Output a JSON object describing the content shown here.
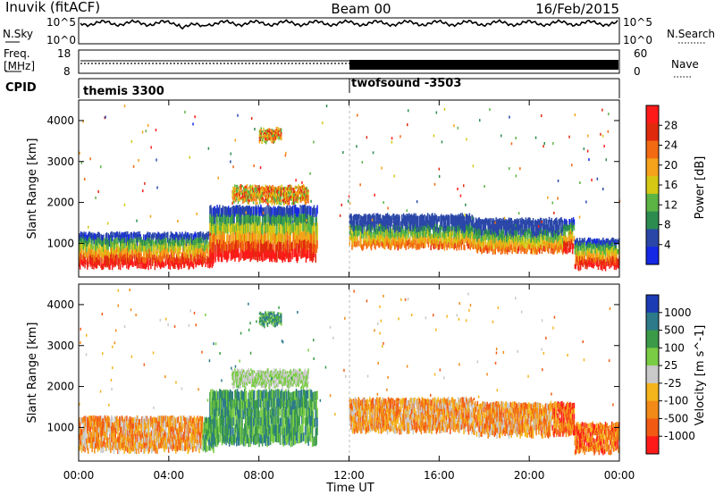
{
  "header": {
    "station": "Inuvik (fitACF)",
    "beam": "Beam 00",
    "date": "16/Feb/2015"
  },
  "status_panels": {
    "nsky_label": "N.Sky",
    "nsearch_label": "N.Search",
    "noise_ticks_left": [
      "10^5",
      "10^0"
    ],
    "noise_ticks_right": [
      "10^5",
      "10^0"
    ],
    "freq_label_line1": "Freq.",
    "freq_label_line2": "[MHz]",
    "freq_ticks": [
      "18",
      "8"
    ],
    "nave_label": "Nave",
    "nave_ticks": [
      "60",
      "0"
    ],
    "cpid_label": "CPID",
    "cpid_segments": [
      {
        "name": "themis 3300",
        "start_hour": 0
      },
      {
        "name": "twofsound -3503",
        "start_hour": 12
      }
    ]
  },
  "colors": {
    "power_scale": [
      "#1428e6",
      "#2a47a8",
      "#2c8c50",
      "#5bb444",
      "#d4c814",
      "#f4a21a",
      "#f26a12",
      "#e02a0e",
      "#ff1a1a"
    ],
    "velocity_scale": [
      "#ff1a1a",
      "#f25a14",
      "#f28a18",
      "#f4b41c",
      "#c9c9c9",
      "#7acc44",
      "#3a9a48",
      "#2c7a8a",
      "#1c3cb4"
    ]
  },
  "chart_data": [
    {
      "type": "heatmap",
      "name": "power_panel",
      "ylabel": "Slant Range [km]",
      "xlabel": "Time UT",
      "x_ticks": [
        "00:00",
        "04:00",
        "08:00",
        "12:00",
        "16:00",
        "20:00",
        "00:00"
      ],
      "xlim_hours": [
        0,
        24
      ],
      "ylim": [
        180,
        4500
      ],
      "y_ticks": [
        1000,
        2000,
        3000,
        4000
      ],
      "colorbar": {
        "label": "Power [dB]",
        "ticks": [
          "28",
          "24",
          "20",
          "16",
          "12",
          "8",
          "4"
        ]
      },
      "echo_bands_km": [
        {
          "t0": 0.0,
          "t1": 6.0,
          "r0": 430,
          "r1": 1250
        },
        {
          "t0": 5.8,
          "t1": 10.6,
          "r0": 600,
          "r1": 1900
        },
        {
          "t0": 6.8,
          "t1": 10.2,
          "r0": 2000,
          "r1": 2400
        },
        {
          "t0": 8.0,
          "t1": 9.0,
          "r0": 3500,
          "r1": 3800
        },
        {
          "t0": 12.0,
          "t1": 17.5,
          "r0": 900,
          "r1": 1700
        },
        {
          "t0": 17.5,
          "t1": 22.0,
          "r0": 800,
          "r1": 1600
        },
        {
          "t0": 22.0,
          "t1": 24.0,
          "r0": 400,
          "r1": 1100
        }
      ]
    },
    {
      "type": "heatmap",
      "name": "velocity_panel",
      "ylabel": "Slant Range [km]",
      "xlabel": "Time UT",
      "x_ticks": [
        "00:00",
        "04:00",
        "08:00",
        "12:00",
        "16:00",
        "20:00",
        "00:00"
      ],
      "xlim_hours": [
        0,
        24
      ],
      "ylim": [
        180,
        4500
      ],
      "y_ticks": [
        1000,
        2000,
        3000,
        4000
      ],
      "colorbar": {
        "label": "Velocity [m s^-1]",
        "ticks": [
          "1000",
          "500",
          "100",
          "25",
          "-25",
          "-100",
          "-500",
          "-1000"
        ]
      }
    }
  ]
}
